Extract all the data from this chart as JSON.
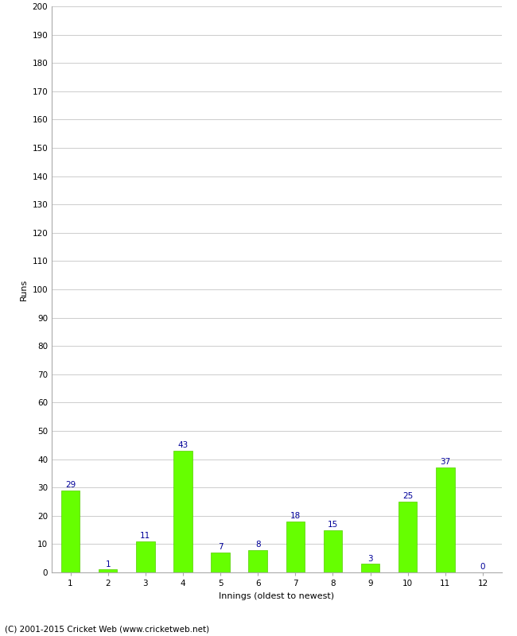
{
  "innings": [
    1,
    2,
    3,
    4,
    5,
    6,
    7,
    8,
    9,
    10,
    11,
    12
  ],
  "runs": [
    29,
    1,
    11,
    43,
    7,
    8,
    18,
    15,
    3,
    25,
    37,
    0
  ],
  "bar_color": "#66ff00",
  "bar_edge_color": "#55cc00",
  "label_color": "#000099",
  "xlabel": "Innings (oldest to newest)",
  "ylabel": "Runs",
  "ylim": [
    0,
    200
  ],
  "background_color": "#ffffff",
  "grid_color": "#cccccc",
  "footer": "(C) 2001-2015 Cricket Web (www.cricketweb.net)",
  "label_fontsize": 7.5,
  "axis_label_fontsize": 8,
  "tick_fontsize": 7.5,
  "footer_fontsize": 7.5,
  "bar_width": 0.5
}
